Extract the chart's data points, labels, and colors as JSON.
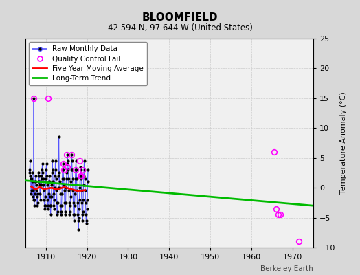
{
  "title": "BLOOMFIELD",
  "subtitle": "42.594 N, 97.644 W (United States)",
  "credit": "Berkeley Earth",
  "ylabel": "Temperature Anomaly (°C)",
  "xlim": [
    1905,
    1975
  ],
  "ylim": [
    -10,
    25
  ],
  "yticks": [
    -10,
    -5,
    0,
    5,
    10,
    15,
    20,
    25
  ],
  "xticks": [
    1910,
    1920,
    1930,
    1940,
    1950,
    1960,
    1970
  ],
  "bg_color": "#d8d8d8",
  "plot_bg": "#f0f0f0",
  "raw_color": "#5555ff",
  "dot_color": "#000000",
  "qc_color": "#ff00ff",
  "moving_avg_color": "#ff0000",
  "trend_color": "#00bb00",
  "raw_monthly_x": [
    1906.0,
    1906.083,
    1906.167,
    1906.25,
    1906.333,
    1906.417,
    1906.5,
    1906.583,
    1906.667,
    1906.75,
    1906.833,
    1906.917,
    1907.0,
    1907.083,
    1907.167,
    1907.25,
    1907.333,
    1907.417,
    1907.5,
    1907.583,
    1907.667,
    1907.75,
    1907.833,
    1907.917,
    1908.0,
    1908.083,
    1908.167,
    1908.25,
    1908.333,
    1908.417,
    1908.5,
    1908.583,
    1908.667,
    1908.75,
    1908.833,
    1908.917,
    1909.0,
    1909.083,
    1909.167,
    1909.25,
    1909.333,
    1909.417,
    1909.5,
    1909.583,
    1909.667,
    1909.75,
    1909.833,
    1909.917,
    1910.0,
    1910.083,
    1910.167,
    1910.25,
    1910.333,
    1910.417,
    1910.5,
    1910.583,
    1910.667,
    1910.75,
    1910.833,
    1910.917,
    1911.0,
    1911.083,
    1911.167,
    1911.25,
    1911.333,
    1911.417,
    1911.5,
    1911.583,
    1911.667,
    1911.75,
    1911.833,
    1911.917,
    1912.0,
    1912.083,
    1912.167,
    1912.25,
    1912.333,
    1912.417,
    1912.5,
    1912.583,
    1912.667,
    1912.75,
    1912.833,
    1912.917,
    1913.0,
    1913.083,
    1913.167,
    1913.25,
    1913.333,
    1913.417,
    1913.5,
    1913.583,
    1913.667,
    1913.75,
    1913.833,
    1913.917,
    1914.0,
    1914.083,
    1914.167,
    1914.25,
    1914.333,
    1914.417,
    1914.5,
    1914.583,
    1914.667,
    1914.75,
    1914.833,
    1914.917,
    1915.0,
    1915.083,
    1915.167,
    1915.25,
    1915.333,
    1915.417,
    1915.5,
    1915.583,
    1915.667,
    1915.75,
    1915.833,
    1915.917,
    1916.0,
    1916.083,
    1916.167,
    1916.25,
    1916.333,
    1916.417,
    1916.5,
    1916.583,
    1916.667,
    1916.75,
    1916.833,
    1916.917,
    1917.0,
    1917.083,
    1917.167,
    1917.25,
    1917.333,
    1917.417,
    1917.5,
    1917.583,
    1917.667,
    1917.75,
    1917.833,
    1917.917,
    1918.0,
    1918.083,
    1918.167,
    1918.25,
    1918.333,
    1918.417,
    1918.5,
    1918.583,
    1918.667,
    1918.75,
    1918.833,
    1918.917,
    1919.0,
    1919.083,
    1919.167,
    1919.25,
    1919.333,
    1919.417,
    1919.5,
    1919.583,
    1919.667,
    1919.75,
    1919.833,
    1919.917,
    1920.0,
    1920.083,
    1920.167,
    1920.25
  ],
  "raw_monthly_y": [
    3.0,
    2.5,
    4.5,
    2.0,
    1.5,
    -1.0,
    -0.5,
    1.5,
    2.5,
    1.0,
    -0.5,
    -1.5,
    -2.0,
    15.0,
    -3.0,
    -2.0,
    -1.0,
    1.0,
    2.0,
    1.0,
    0.5,
    -0.5,
    -1.5,
    -3.0,
    -2.5,
    -1.0,
    1.0,
    2.5,
    2.0,
    1.0,
    0.5,
    -1.0,
    -2.0,
    1.0,
    2.0,
    0.5,
    1.5,
    3.0,
    4.0,
    2.5,
    1.5,
    0.5,
    -0.5,
    -2.0,
    -3.0,
    -3.5,
    -3.0,
    -1.5,
    1.5,
    3.0,
    4.0,
    2.0,
    0.5,
    -2.0,
    -3.5,
    -3.0,
    -1.0,
    1.0,
    2.0,
    1.0,
    -1.5,
    -3.0,
    -4.5,
    -3.0,
    -1.5,
    0.5,
    2.5,
    4.5,
    3.0,
    1.0,
    -1.0,
    -3.0,
    -3.5,
    -2.0,
    0.0,
    2.0,
    4.5,
    3.0,
    1.5,
    -0.5,
    -2.5,
    -4.5,
    -4.0,
    -2.5,
    0.0,
    2.0,
    8.5,
    2.5,
    1.0,
    0.0,
    -1.0,
    -3.0,
    -4.5,
    -4.0,
    -3.0,
    -1.0,
    1.5,
    3.0,
    4.0,
    3.0,
    1.5,
    0.5,
    -0.5,
    -2.5,
    -4.5,
    -4.0,
    -2.5,
    0.0,
    1.5,
    2.5,
    4.0,
    5.5,
    4.5,
    3.0,
    1.5,
    -0.5,
    -2.5,
    -4.5,
    -4.0,
    -3.0,
    -1.5,
    1.0,
    3.0,
    5.5,
    4.5,
    3.0,
    1.5,
    -0.5,
    -2.5,
    -4.5,
    -5.5,
    -4.5,
    -3.0,
    -1.0,
    1.5,
    3.0,
    4.5,
    3.0,
    1.5,
    -0.5,
    -2.5,
    -4.5,
    -5.5,
    -7.0,
    -5.0,
    -3.5,
    -2.0,
    0.0,
    2.0,
    3.5,
    3.0,
    1.5,
    -0.5,
    -2.5,
    -4.5,
    -5.5,
    -4.0,
    -2.0,
    0.5,
    2.0,
    4.5,
    3.0,
    1.5,
    -0.5,
    -2.5,
    -4.5,
    -6.0,
    -5.5,
    -3.5,
    -2.0,
    1.0,
    3.0
  ],
  "qc_fail_x": [
    1907.083,
    1910.5,
    1914.167,
    1914.333,
    1915.083,
    1915.25,
    1916.167,
    1917.167,
    1918.25,
    1918.417,
    1918.583,
    1918.917,
    1965.5,
    1966.0,
    1966.583,
    1967.0,
    1971.5
  ],
  "qc_fail_y": [
    15.0,
    15.0,
    4.0,
    3.0,
    5.5,
    3.5,
    5.5,
    3.0,
    4.5,
    2.0,
    2.0,
    3.0,
    6.0,
    -3.5,
    -4.5,
    -4.5,
    -9.0
  ],
  "moving_avg_x": [
    1906.5,
    1907.5,
    1908.5,
    1909.5,
    1910.5,
    1911.5,
    1912.5,
    1913.5,
    1914.5,
    1915.5,
    1916.5,
    1917.5,
    1918.5,
    1919.5
  ],
  "moving_avg_y": [
    0.2,
    -0.3,
    0.1,
    -0.2,
    -0.1,
    0.0,
    -0.3,
    -0.1,
    0.1,
    -0.1,
    -0.3,
    -0.5,
    -0.5,
    -0.4
  ],
  "trend_x": [
    1905,
    1975
  ],
  "trend_y": [
    1.2,
    -3.0
  ]
}
